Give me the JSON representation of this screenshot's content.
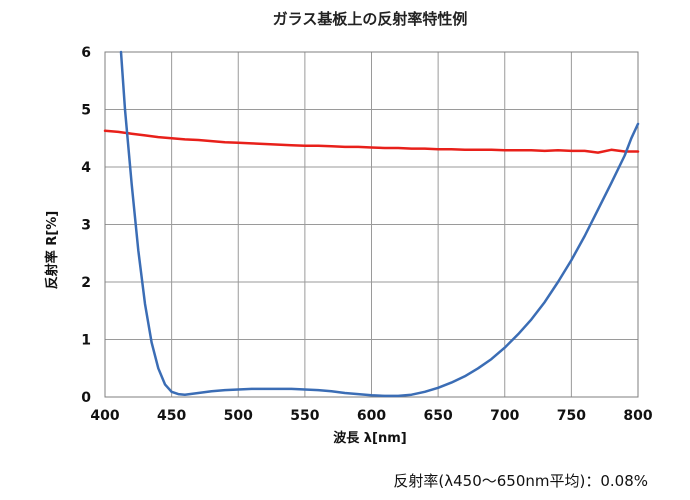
{
  "chart_data": {
    "type": "line",
    "title": "ガラス基板上の反射率特性例",
    "xlabel": "波長 λ[nm]",
    "ylabel": "反射率 R[%]",
    "xlim": [
      400,
      800
    ],
    "ylim": [
      0,
      6
    ],
    "x_ticks": [
      "400",
      "450",
      "500",
      "550",
      "600",
      "650",
      "700",
      "750",
      "800"
    ],
    "y_ticks": [
      "0",
      "1",
      "2",
      "3",
      "4",
      "5",
      "6"
    ],
    "grid": true,
    "legend": "none",
    "annotation": "反射率(λ450～650nm平均)：0.08%",
    "series": [
      {
        "color": "#e8201a",
        "x": [
          400,
          410,
          420,
          430,
          440,
          450,
          460,
          470,
          480,
          490,
          500,
          510,
          520,
          530,
          540,
          550,
          560,
          570,
          580,
          590,
          600,
          610,
          620,
          630,
          640,
          650,
          660,
          670,
          680,
          690,
          700,
          710,
          720,
          730,
          740,
          750,
          760,
          770,
          780,
          790,
          800
        ],
        "y": [
          4.63,
          4.61,
          4.58,
          4.55,
          4.52,
          4.5,
          4.48,
          4.47,
          4.45,
          4.43,
          4.42,
          4.41,
          4.4,
          4.39,
          4.38,
          4.37,
          4.37,
          4.36,
          4.35,
          4.35,
          4.34,
          4.33,
          4.33,
          4.32,
          4.32,
          4.31,
          4.31,
          4.3,
          4.3,
          4.3,
          4.29,
          4.29,
          4.29,
          4.28,
          4.29,
          4.28,
          4.28,
          4.25,
          4.3,
          4.27,
          4.27
        ]
      },
      {
        "color": "#3b6db5",
        "x": [
          412,
          415,
          420,
          425,
          430,
          435,
          440,
          445,
          450,
          455,
          460,
          470,
          480,
          490,
          500,
          510,
          520,
          530,
          540,
          550,
          560,
          570,
          580,
          590,
          600,
          610,
          620,
          630,
          640,
          650,
          660,
          670,
          680,
          690,
          700,
          710,
          720,
          730,
          740,
          750,
          760,
          770,
          780,
          790,
          795,
          800
        ],
        "y": [
          6.0,
          5.0,
          3.7,
          2.55,
          1.62,
          0.95,
          0.5,
          0.22,
          0.09,
          0.05,
          0.04,
          0.07,
          0.1,
          0.12,
          0.13,
          0.14,
          0.14,
          0.14,
          0.14,
          0.13,
          0.12,
          0.1,
          0.07,
          0.05,
          0.03,
          0.02,
          0.02,
          0.04,
          0.09,
          0.16,
          0.25,
          0.36,
          0.5,
          0.66,
          0.86,
          1.09,
          1.35,
          1.65,
          2.0,
          2.38,
          2.8,
          3.26,
          3.72,
          4.2,
          4.5,
          4.75
        ]
      }
    ]
  }
}
